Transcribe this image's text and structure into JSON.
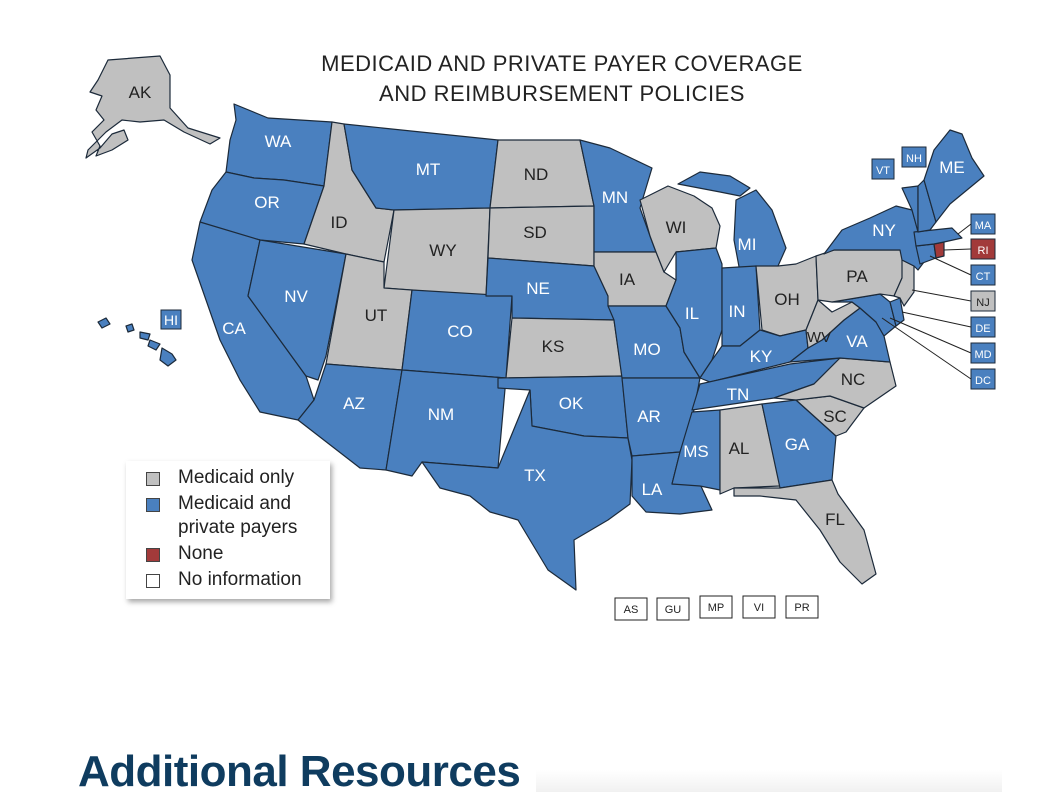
{
  "map": {
    "title_line1": "MEDICAID AND PRIVATE PAYER COVERAGE",
    "title_line2": "AND REIMBURSEMENT POLICIES",
    "colors": {
      "medicaid_only": "#c0c0c0",
      "medicaid_and_private": "#4a80bf",
      "none": "#a23a3a",
      "no_information": "#ffffff"
    },
    "states": {
      "AK": "Medicaid only",
      "WA": "Medicaid and private payers",
      "OR": "Medicaid and private payers",
      "CA": "Medicaid and private payers",
      "NV": "Medicaid and private payers",
      "ID": "Medicaid only",
      "MT": "Medicaid and private payers",
      "WY": "Medicaid only",
      "UT": "Medicaid only",
      "AZ": "Medicaid and private payers",
      "CO": "Medicaid and private payers",
      "NM": "Medicaid and private payers",
      "ND": "Medicaid only",
      "SD": "Medicaid only",
      "NE": "Medicaid and private payers",
      "KS": "Medicaid only",
      "OK": "Medicaid and private payers",
      "TX": "Medicaid and private payers",
      "MN": "Medicaid and private payers",
      "IA": "Medicaid only",
      "MO": "Medicaid and private payers",
      "AR": "Medicaid and private payers",
      "LA": "Medicaid and private payers",
      "WI": "Medicaid only",
      "IL": "Medicaid and private payers",
      "MI": "Medicaid and private payers",
      "IN": "Medicaid and private payers",
      "OH": "Medicaid only",
      "KY": "Medicaid and private payers",
      "TN": "Medicaid and private payers",
      "MS": "Medicaid and private payers",
      "AL": "Medicaid only",
      "GA": "Medicaid and private payers",
      "FL": "Medicaid only",
      "SC": "Medicaid only",
      "NC": "Medicaid only",
      "VA": "Medicaid and private payers",
      "WV": "Medicaid only",
      "PA": "Medicaid only",
      "NY": "Medicaid and private payers",
      "VT": "Medicaid and private payers",
      "NH": "Medicaid and private payers",
      "ME": "Medicaid and private payers",
      "MA": "Medicaid and private payers",
      "RI": "None",
      "CT": "Medicaid and private payers",
      "NJ": "Medicaid only",
      "DE": "Medicaid and private payers",
      "MD": "Medicaid and private payers",
      "DC": "Medicaid and private payers",
      "HI": "Medicaid and private payers"
    },
    "state_labels": {
      "AK": "AK",
      "WA": "WA",
      "OR": "OR",
      "CA": "CA",
      "NV": "NV",
      "ID": "ID",
      "MT": "MT",
      "WY": "WY",
      "UT": "UT",
      "AZ": "AZ",
      "CO": "CO",
      "NM": "NM",
      "ND": "ND",
      "SD": "SD",
      "NE": "NE",
      "KS": "KS",
      "OK": "OK",
      "TX": "TX",
      "MN": "MN",
      "IA": "IA",
      "MO": "MO",
      "AR": "AR",
      "LA": "LA",
      "WI": "WI",
      "IL": "IL",
      "MI": "MI",
      "IN": "IN",
      "OH": "OH",
      "KY": "KY",
      "TN": "TN",
      "MS": "MS",
      "AL": "AL",
      "GA": "GA",
      "FL": "FL",
      "SC": "SC",
      "NC": "NC",
      "VA": "VA",
      "WV": "WV",
      "PA": "PA",
      "NY": "NY",
      "ME": "ME",
      "HI": "HI",
      "VT": "VT",
      "NH": "NH",
      "MA": "MA",
      "RI": "RI",
      "CT": "CT",
      "NJ": "NJ",
      "DE": "DE",
      "MD": "MD",
      "DC": "DC"
    },
    "territories": [
      "AS",
      "GU",
      "MP",
      "VI",
      "PR"
    ]
  },
  "legend": {
    "items": [
      {
        "label": "Medicaid only",
        "color": "#c0c0c0"
      },
      {
        "label": "Medicaid and private payers",
        "color": "#4a80bf"
      },
      {
        "label": "None",
        "color": "#a23a3a"
      },
      {
        "label": "No information",
        "color": "#ffffff"
      }
    ]
  },
  "section": {
    "heading": "Additional Resources"
  }
}
